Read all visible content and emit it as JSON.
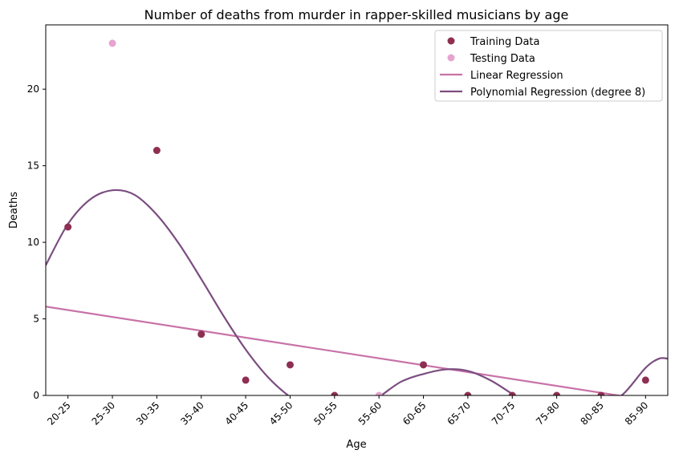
{
  "chart_data": {
    "type": "scatter",
    "title": "Number of deaths from murder in rapper-skilled musicians by age",
    "xlabel": "Age",
    "ylabel": "Deaths",
    "categories": [
      "20-25",
      "25-30",
      "30-35",
      "35-40",
      "40-45",
      "45-50",
      "50-55",
      "55-60",
      "60-65",
      "65-70",
      "70-75",
      "75-80",
      "80-85",
      "85-90"
    ],
    "xlim": [
      -0.5,
      13.5
    ],
    "ylim": [
      0,
      24.2
    ],
    "yticks": [
      0,
      5,
      10,
      15,
      20
    ],
    "grid": false,
    "legend_position": "top-right",
    "colors": {
      "training": "#8e2f52",
      "testing": "#e6a3cf",
      "linear": "#c873a8",
      "poly": "#7b4d80"
    },
    "series": [
      {
        "name": "Training Data",
        "kind": "scatter",
        "points": [
          [
            0,
            11
          ],
          [
            2,
            16
          ],
          [
            3,
            4
          ],
          [
            4,
            1
          ],
          [
            5,
            2
          ],
          [
            6,
            0
          ],
          [
            8,
            2
          ],
          [
            9,
            0
          ],
          [
            10,
            0
          ],
          [
            11,
            0
          ],
          [
            12,
            0
          ],
          [
            13,
            1
          ]
        ]
      },
      {
        "name": "Testing Data",
        "kind": "scatter",
        "points": [
          [
            1,
            23
          ],
          [
            7,
            0
          ]
        ]
      },
      {
        "name": "Linear Regression",
        "kind": "line",
        "points": [
          [
            -0.5,
            5.8
          ],
          [
            13.5,
            -0.5
          ]
        ]
      },
      {
        "name": "Polynomial Regression (degree 8)",
        "kind": "curve",
        "points": [
          [
            -0.5,
            8.5
          ],
          [
            0,
            11.2
          ],
          [
            0.5,
            12.8
          ],
          [
            1,
            13.4
          ],
          [
            1.5,
            13.1
          ],
          [
            2,
            11.8
          ],
          [
            2.5,
            9.9
          ],
          [
            3,
            7.6
          ],
          [
            3.5,
            5.2
          ],
          [
            4,
            3.0
          ],
          [
            4.5,
            1.2
          ],
          [
            5,
            -0.1
          ],
          [
            5.5,
            -1.0
          ],
          [
            6,
            -1.3
          ],
          [
            6.5,
            -1.0
          ],
          [
            7,
            -0.1
          ],
          [
            7.5,
            0.9
          ],
          [
            8,
            1.4
          ],
          [
            8.5,
            1.7
          ],
          [
            9,
            1.6
          ],
          [
            9.5,
            1.0
          ],
          [
            10,
            0.1
          ],
          [
            10.5,
            -0.8
          ],
          [
            11,
            -1.4
          ],
          [
            11.5,
            -1.5
          ],
          [
            12,
            -0.8
          ],
          [
            12.5,
            0.1
          ],
          [
            13,
            1.8
          ],
          [
            13.3,
            2.4
          ],
          [
            13.5,
            2.4
          ]
        ]
      }
    ]
  }
}
